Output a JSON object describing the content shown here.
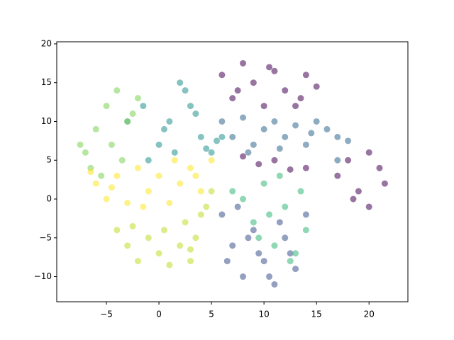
{
  "chart_data": {
    "type": "scatter",
    "xlim": [
      -9.73,
      23.7
    ],
    "ylim": [
      -13.24,
      20.27
    ],
    "xticks": [
      {
        "value": -5,
        "label": "−5"
      },
      0,
      5,
      10,
      15,
      20
    ],
    "yticks": [
      {
        "value": -10,
        "label": "−10"
      },
      {
        "value": -5,
        "label": "−5"
      },
      0,
      5,
      10,
      15,
      20
    ],
    "grid": false,
    "series": [
      {
        "color": "#440154",
        "x": [
          6,
          7,
          8,
          9,
          10,
          11,
          12,
          13,
          14,
          15,
          7.5,
          10.5,
          13.5,
          17,
          18,
          19,
          20,
          21,
          21.5,
          18.5,
          20,
          8,
          9.5,
          11,
          12.5,
          14
        ],
        "y": [
          16,
          13,
          17.5,
          15,
          12,
          16.5,
          14,
          12,
          16,
          14.5,
          14,
          17,
          13,
          3,
          5,
          1,
          6,
          4,
          2,
          0,
          -1,
          5.5,
          4.5,
          5,
          3.8,
          4
        ]
      },
      {
        "color": "#3b528b",
        "x": [
          6,
          7,
          8,
          9,
          10,
          11,
          12,
          13,
          7.5,
          9.5,
          11.5,
          6.5,
          8.5,
          10.5,
          12.5,
          14
        ],
        "y": [
          -2,
          -6,
          -10,
          -4,
          -8,
          -11,
          -5,
          -9,
          -1,
          -7,
          -3,
          -8,
          -5,
          -10,
          -7,
          -2
        ]
      },
      {
        "color": "#31688e",
        "x": [
          6,
          7,
          8,
          9,
          10,
          11,
          12,
          13,
          14,
          15,
          16,
          17,
          18,
          8.5,
          11.5,
          14.5,
          17
        ],
        "y": [
          10,
          8,
          10.5,
          7,
          9,
          10,
          8,
          9.5,
          7,
          10,
          9,
          8,
          7.5,
          6,
          6.5,
          8.5,
          5
        ]
      },
      {
        "color": "#21918c",
        "x": [
          0,
          1,
          2,
          3,
          4,
          5,
          6,
          2.5,
          -1,
          1.5,
          3.5,
          5.5,
          -3,
          -1.5,
          0.5,
          4.5
        ],
        "y": [
          7,
          10,
          15,
          12,
          8,
          6,
          8,
          14,
          5,
          6,
          11,
          7.5,
          10,
          12,
          9,
          6.5
        ]
      },
      {
        "color": "#35b779",
        "x": [
          8,
          9,
          10,
          11,
          12,
          13,
          14,
          9.5,
          11.5,
          13.5,
          10.5,
          12.5,
          7
        ],
        "y": [
          0,
          -3,
          2,
          -6,
          -1,
          -7,
          -4,
          -5,
          3,
          1,
          -2,
          -8,
          1
        ]
      },
      {
        "color": "#7ad151",
        "x": [
          -7,
          -6,
          -5,
          -4,
          -3,
          -2,
          -6.5,
          -4.5,
          -3.5,
          -2.5,
          -5.5,
          -7.5
        ],
        "y": [
          6,
          9,
          12,
          14,
          10,
          13,
          4,
          7,
          5,
          11,
          3,
          7
        ]
      },
      {
        "color": "#bddf26",
        "x": [
          -4,
          -3,
          -2,
          -1,
          0,
          1,
          2,
          3,
          -2.5,
          0.5,
          2.5,
          3.5,
          4,
          5,
          4.5,
          3
        ],
        "y": [
          -4,
          -6,
          -8,
          -5,
          -7,
          -8.5,
          -6,
          -8,
          -3.5,
          -4,
          -3,
          -5,
          -2,
          1,
          -1,
          -6.5
        ]
      },
      {
        "color": "#fde725",
        "x": [
          -6,
          -5,
          -4,
          -3,
          -2,
          -1,
          0,
          1,
          2,
          3,
          4,
          5,
          -4.5,
          -1.5,
          1.5,
          3.5,
          -6.5
        ],
        "y": [
          2,
          0,
          3,
          -0.5,
          4,
          1,
          3,
          -0.5,
          2,
          4,
          1,
          5,
          1.5,
          -1,
          5,
          3,
          3.5
        ]
      }
    ]
  }
}
